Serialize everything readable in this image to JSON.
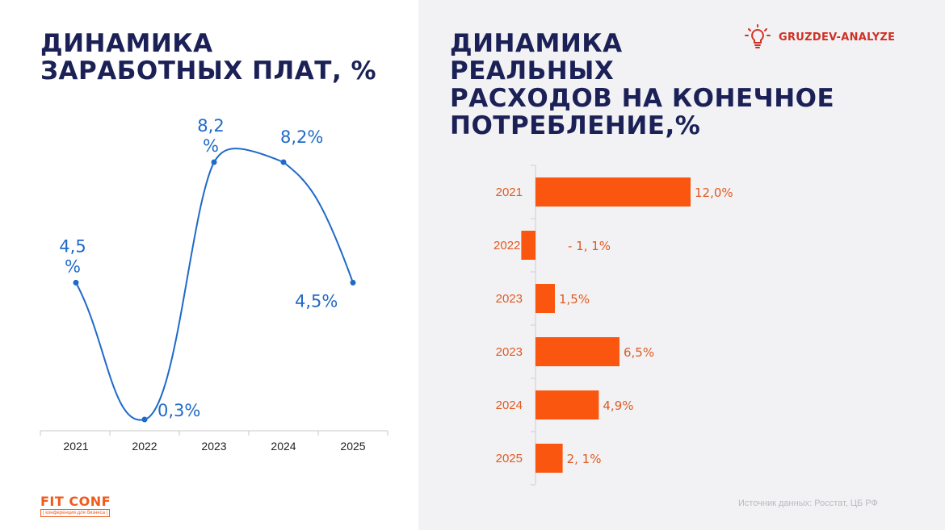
{
  "left_title_lines": [
    "ДИНАМИКА",
    "ЗАРАБОТНЫХ ПЛАТ, %"
  ],
  "right_title_lines": [
    "ДИНАМИКА",
    "РЕАЛЬНЫХ",
    "РАСХОДОВ НА КОНЕЧНОЕ",
    "ПОТРЕБЛЕНИЕ,%"
  ],
  "brand_top": "GRUZDEV-ANALYZE",
  "brand_bottom": {
    "name": "FIT CONF",
    "tagline": "| конференция для бизнеса |"
  },
  "source": "Источник данных: Росстат, ЦБ РФ",
  "colors": {
    "line": "#1f6ac8",
    "bar": "#fa560f",
    "title": "#1b2156",
    "brand_red": "#d03024",
    "brand_orange": "#f25a1c"
  },
  "icons": [
    "lightbulb-icon"
  ],
  "chart_data": [
    {
      "type": "line",
      "title": "ДИНАМИКА ЗАРАБОТНЫХ ПЛАТ, %",
      "categories": [
        "2021",
        "2022",
        "2023",
        "2024",
        "2025"
      ],
      "values": [
        4.5,
        0.3,
        8.2,
        8.2,
        4.5
      ],
      "data_labels": [
        "4,5\n%",
        "0,3%",
        "8,2\n%",
        "8,2%",
        "4,5%"
      ],
      "smooth": true,
      "grid": false,
      "ylim": [
        0,
        9
      ]
    },
    {
      "type": "bar",
      "orientation": "horizontal",
      "title": "ДИНАМИКА РЕАЛЬНЫХ РАСХОДОВ НА КОНЕЧНОЕ ПОТРЕБЛЕНИЕ,%",
      "categories": [
        "2021",
        "2022",
        "2023",
        "2023",
        "2024",
        "2025"
      ],
      "values": [
        12.0,
        -1.1,
        1.5,
        6.5,
        4.9,
        2.1
      ],
      "data_labels": [
        "12,0%",
        "- 1, 1%",
        "1,5%",
        "6,5%",
        "4,9%",
        "2, 1%"
      ],
      "grid": false
    }
  ]
}
